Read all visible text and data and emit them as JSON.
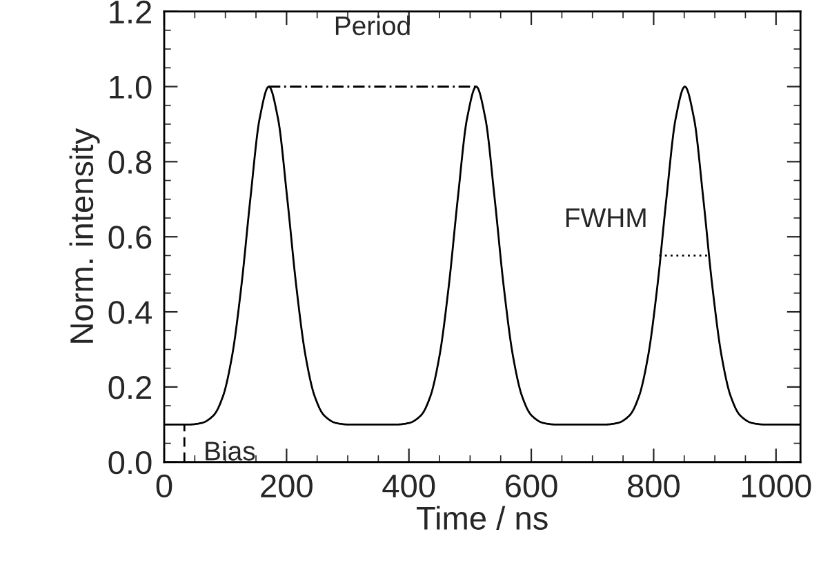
{
  "chart_data": {
    "type": "line",
    "xlabel": "Time / ns",
    "ylabel": "Norm. intensity",
    "xlim": [
      0,
      1040
    ],
    "xticks": [
      0,
      200,
      400,
      600,
      800,
      1000
    ],
    "ylim": [
      0,
      1.2
    ],
    "yticks": [
      {
        "value": 0,
        "label": "0.0"
      },
      0.2,
      0.4,
      0.6,
      0.8,
      {
        "value": 1,
        "label": "1.0"
      },
      1.2
    ],
    "grid": false,
    "legend": false,
    "marker": "none",
    "series": [
      {
        "color": "#000000",
        "line_style": "solid",
        "x": [
          0,
          41,
          61,
          81,
          96,
          111,
          126,
          141,
          156,
          171,
          186,
          201,
          216,
          231,
          246,
          261,
          281,
          301,
          380,
          400,
          420,
          435,
          450,
          465,
          480,
          495,
          510,
          525,
          540,
          555,
          570,
          585,
          600,
          620,
          640,
          721,
          741,
          761,
          776,
          791,
          806,
          821,
          836,
          851,
          866,
          881,
          896,
          911,
          926,
          941,
          961,
          981,
          1040
        ],
        "values": [
          0.1,
          0.1,
          0.104,
          0.125,
          0.175,
          0.283,
          0.467,
          0.704,
          0.915,
          1.0,
          0.915,
          0.704,
          0.467,
          0.283,
          0.175,
          0.125,
          0.104,
          0.1,
          0.1,
          0.104,
          0.125,
          0.175,
          0.283,
          0.467,
          0.704,
          0.915,
          1.0,
          0.915,
          0.704,
          0.467,
          0.283,
          0.175,
          0.125,
          0.104,
          0.1,
          0.1,
          0.104,
          0.125,
          0.175,
          0.283,
          0.467,
          0.704,
          0.915,
          1.0,
          0.915,
          0.704,
          0.467,
          0.283,
          0.175,
          0.125,
          0.104,
          0.1,
          0.1
        ]
      },
      {
        "color": "#000000",
        "line_style": "dashdot",
        "x": [
          171,
          510
        ],
        "values": [
          1.0,
          1.0
        ]
      },
      {
        "color": "#000000",
        "line_style": "dotted",
        "x": [
          809,
          888
        ],
        "values": [
          0.55,
          0.55
        ]
      },
      {
        "color": "#000000",
        "line_style": "dashed",
        "x": [
          33,
          33
        ],
        "values": [
          0,
          0.1
        ]
      }
    ],
    "annotations": [
      "Period",
      "FWHM",
      "Bias"
    ]
  }
}
